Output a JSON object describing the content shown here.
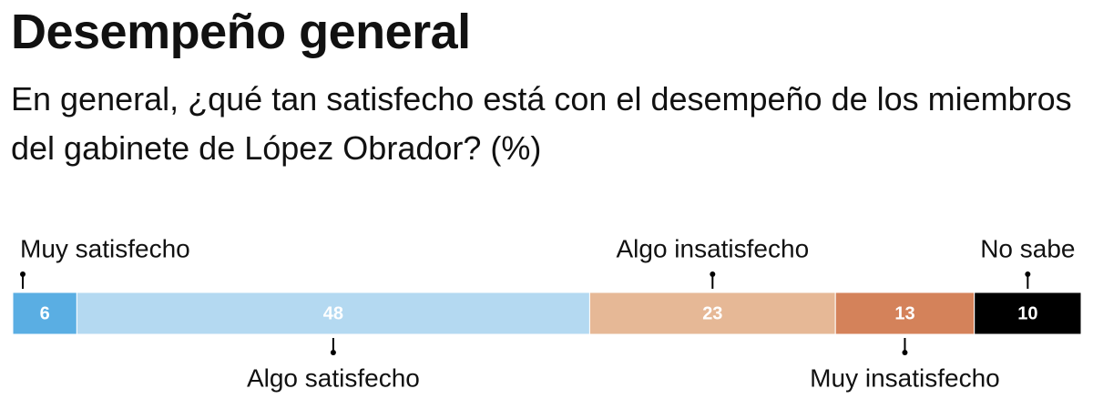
{
  "chart_data": {
    "type": "stacked-bar",
    "title": "Desempeño general",
    "subtitle": "En general, ¿qué tan satisfecho está con el desempeño de los miembros del gabinete de López Obrador? (%)",
    "series": [
      {
        "name": "Muy satisfecho",
        "color": "#5aaee3",
        "values": [
          6
        ]
      },
      {
        "name": "Algo satisfecho",
        "color": "#b4d9f1",
        "values": [
          48
        ]
      },
      {
        "name": "Algo insatisfecho",
        "color": "#e6b896",
        "values": [
          23
        ]
      },
      {
        "name": "Muy insatisfecho",
        "color": "#d4825a",
        "values": [
          13
        ]
      },
      {
        "name": "No sabe",
        "color": "#000000",
        "values": [
          10
        ]
      }
    ]
  }
}
